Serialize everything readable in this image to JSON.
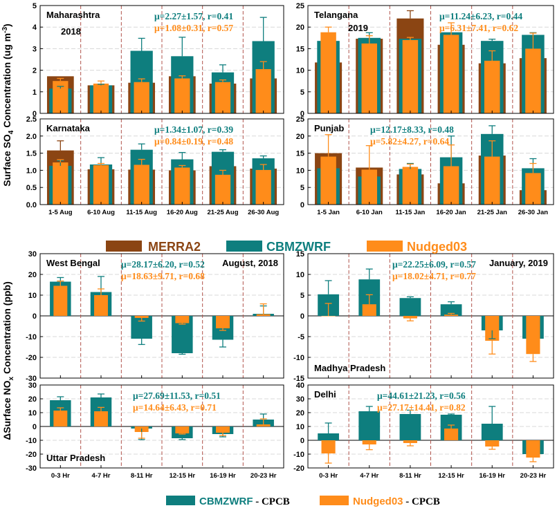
{
  "colors": {
    "merra2": "#8B4513",
    "cbmzwrf": "#0E7E7E",
    "nudged03": "#FF8C1A",
    "divider": "#B0524A",
    "grid": "#D8D8D8"
  },
  "top_ylabel": {
    "main": "Surface SO",
    "sub": "4",
    "rest": " Concentration (ug m",
    "sup": "-3",
    "end": ")"
  },
  "bottom_ylabel": {
    "main": "ΔSurface NO",
    "sub": "x",
    "rest": " Concentration (ppb)"
  },
  "legend_top": [
    {
      "series": "merra2",
      "label": "MERRA2"
    },
    {
      "series": "cbmzwrf",
      "label": "CBMZWRF"
    },
    {
      "series": "nudged03",
      "label": "Nudged03"
    }
  ],
  "legend_bottom": [
    {
      "series": "cbmzwrf",
      "label": "CBMZWRF",
      "suffix": " - CPCB"
    },
    {
      "series": "nudged03",
      "label": "Nudged03",
      "suffix": " - CPCB"
    }
  ],
  "chart_data": [
    {
      "id": "maharashtra",
      "type": "bar",
      "title": "Maharashtra",
      "subtitle": "2018",
      "stat_cbmz": "μ=2.27±1.57, r=0.41",
      "stat_nudged": "μ=1.08±0.31, r=0.57",
      "categories": [
        "1-5 Aug",
        "6-10 Aug",
        "11-15 Aug",
        "16-20 Aug",
        "21-25 Aug",
        "26-30 Aug"
      ],
      "show_xticks": false,
      "ylim": [
        0,
        5
      ],
      "yticks": [
        0,
        1,
        2,
        3,
        4,
        5
      ],
      "merra2": [
        1.72,
        1.3,
        1.42,
        1.72,
        1.38,
        1.62
      ],
      "cbmzwrf": [
        1.15,
        1.3,
        2.9,
        2.65,
        1.9,
        3.35
      ],
      "cbmzwrf_err": [
        0.1,
        0.05,
        0.58,
        0.88,
        0.35,
        1.1
      ],
      "nudged03": [
        1.5,
        1.38,
        1.45,
        1.62,
        1.45,
        2.05
      ],
      "nudged03_err": [
        0.12,
        0.12,
        0.15,
        0.12,
        0.1,
        0.35
      ]
    },
    {
      "id": "telangana",
      "type": "bar",
      "title": "Telangana",
      "subtitle": "2019",
      "stat_cbmz": "μ=11.24±6.23, r=0.44",
      "stat_nudged": "μ=6.31±7.41, r=0.62",
      "categories": [
        "1-5 Jan",
        "6-10 Jan",
        "11-15 Jan",
        "16-20 Jan",
        "21-25 Jan",
        "26-30 Jan"
      ],
      "show_xticks": false,
      "ylim": [
        0,
        25
      ],
      "yticks": [
        0,
        5,
        10,
        15,
        20,
        25
      ],
      "merra2": [
        11.8,
        17.3,
        22.0,
        15.9,
        11.6,
        12.8
      ],
      "merra2_err": [
        0,
        0,
        1.8,
        0,
        0,
        0
      ],
      "cbmzwrf": [
        16.8,
        17.5,
        17.3,
        18.8,
        16.8,
        18.2
      ],
      "cbmzwrf_err": [
        0,
        1.2,
        0,
        0,
        0.4,
        0.5
      ],
      "nudged03": [
        18.8,
        16.2,
        17.0,
        18.2,
        12.2,
        15.0
      ],
      "nudged03_err": [
        1.2,
        1.8,
        0.6,
        2.8,
        2.3,
        3.6
      ]
    },
    {
      "id": "karnataka",
      "type": "bar",
      "title": "Karnataka",
      "stat_cbmz": "μ=1.34±1.07, r=0.39",
      "stat_nudged": "μ=0.84±0.19, r=0.48",
      "categories": [
        "1-5 Aug",
        "6-10 Aug",
        "11-15 Aug",
        "16-20 Aug",
        "21-25 Aug",
        "26-30 Aug"
      ],
      "show_xticks": true,
      "ylim": [
        0,
        2.5
      ],
      "yticks": [
        0.0,
        0.5,
        1.0,
        1.5,
        2.0,
        2.5
      ],
      "merra2": [
        1.58,
        1.03,
        1.02,
        1.0,
        1.12,
        1.05
      ],
      "merra2_err": [
        0.28,
        0,
        0,
        0,
        0,
        0
      ],
      "cbmzwrf": [
        1.13,
        1.17,
        1.6,
        1.32,
        1.54,
        1.35
      ],
      "cbmzwrf_err": [
        0.15,
        0.2,
        0.17,
        0.2,
        0.06,
        0.07
      ],
      "nudged03": [
        1.23,
        1.15,
        1.16,
        1.08,
        0.87,
        1.01
      ],
      "nudged03_err": [
        0.08,
        0.05,
        0.16,
        0.06,
        0.13,
        0.16
      ]
    },
    {
      "id": "punjab",
      "type": "bar",
      "title": "Punjab",
      "stat_cbmz": "μ=12.17±8.33, r=0.48",
      "stat_nudged": "μ=5.82±4.27, r=0.64",
      "categories": [
        "1-5 Jan",
        "6-10 Jan",
        "11-15 Jan",
        "16-20 Jan",
        "21-25 Jan",
        "26-30 Jan"
      ],
      "show_xticks": true,
      "ylim": [
        0,
        25
      ],
      "yticks": [
        0,
        5,
        10,
        15,
        20,
        25
      ],
      "merra2": [
        15.0,
        10.8,
        8.8,
        6.2,
        14.3,
        4.2
      ],
      "cbmzwrf": [
        10.6,
        8.2,
        10.4,
        13.8,
        20.6,
        10.6
      ],
      "cbmzwrf_err": [
        0,
        0,
        1.6,
        6.2,
        2.4,
        2.8
      ],
      "nudged03": [
        14.0,
        10.2,
        11.0,
        11.2,
        14.0,
        9.2
      ],
      "nudged03_err": [
        6.4,
        7.0,
        0.8,
        6.2,
        4.6,
        2.8
      ]
    },
    {
      "id": "west-bengal",
      "type": "bar",
      "title": "West Bengal",
      "corner": "August, 2018",
      "stat_cbmz": "μ=28.17±6.20, r=0.52",
      "stat_nudged": "μ=18.63±9.71, r=0.68",
      "categories": [
        "0-3 Hr",
        "4-7 Hr",
        "8-11 Hr",
        "12-15 Hr",
        "16-19 Hr",
        "20-23 Hr"
      ],
      "show_xticks": false,
      "ylim": [
        -30,
        30
      ],
      "yticks": [
        -30,
        -20,
        -10,
        0,
        10,
        20,
        30
      ],
      "cbmzwrf": [
        16.5,
        11.5,
        -11.0,
        -18.0,
        -11.5,
        1.0
      ],
      "cbmzwrf_err": [
        2.0,
        7.5,
        2.8,
        0.5,
        3.5,
        3.8
      ],
      "nudged03": [
        14.5,
        10.0,
        -1.0,
        -3.5,
        -6.0,
        0.8
      ],
      "nudged03_err": [
        2.3,
        3.0,
        1.5,
        0.5,
        1.0,
        5.0
      ]
    },
    {
      "id": "madhya-pradesh",
      "type": "bar",
      "title": "Madhya Pradesh",
      "corner": "January, 2019",
      "title_position": "bottom-left",
      "stat_cbmz": "μ=22.25±6.09, r=0.57",
      "stat_nudged": "μ=18.02±4.71, r=0.77",
      "categories": [
        "0-3 Hr",
        "4-7 Hr",
        "8-11 Hr",
        "12-15 Hr",
        "16-19 Hr",
        "20-23 Hr"
      ],
      "show_xticks": false,
      "ylim": [
        -15,
        15
      ],
      "yticks": [
        -15,
        -10,
        -5,
        0,
        5,
        10,
        15
      ],
      "cbmzwrf": [
        5.2,
        8.8,
        4.3,
        2.8,
        -3.5,
        -5.5
      ],
      "cbmzwrf_err": [
        3.3,
        2.5,
        0.3,
        0.6,
        2.0,
        0
      ],
      "nudged03": [
        0,
        2.8,
        -0.6,
        0.3,
        -6.0,
        -9.2
      ],
      "nudged03_err": [
        3.0,
        2.3,
        0.6,
        0.3,
        3.2,
        1.8
      ]
    },
    {
      "id": "uttar-pradesh",
      "type": "bar",
      "title": "Uttar Pradesh",
      "title_position": "bottom-left",
      "stat_cbmz": "μ=27.69±11.53, r=0.51",
      "stat_nudged": "μ=14.64±6.43, r=0.71",
      "categories": [
        "0-3 Hr",
        "4-7 Hr",
        "8-11 Hr",
        "12-15 Hr",
        "16-19 Hr",
        "20-23 Hr"
      ],
      "show_xticks": true,
      "ylim": [
        -30,
        30
      ],
      "yticks": [
        -30,
        -20,
        -10,
        0,
        10,
        20,
        30
      ],
      "cbmzwrf": [
        19.0,
        21.0,
        -1.5,
        -8.5,
        -5.5,
        5.0
      ],
      "cbmzwrf_err": [
        2.5,
        2.5,
        8.0,
        1.0,
        2.0,
        4.0
      ],
      "nudged03": [
        11.5,
        11.0,
        -4.0,
        -5.0,
        -4.5,
        1.5
      ],
      "nudged03_err": [
        2.0,
        2.8,
        4.5,
        0.5,
        2.0,
        4.0
      ]
    },
    {
      "id": "delhi",
      "type": "bar",
      "title": "Delhi",
      "stat_cbmz": "μ=44.61±21.23, r=0.56",
      "stat_nudged": "μ=27.17±14.41, r=0.82",
      "categories": [
        "0-3 Hr",
        "4-7 Hr",
        "8-11 Hr",
        "12-15 Hr",
        "16-19 Hr",
        "20-23 Hr"
      ],
      "show_xticks": true,
      "ylim": [
        -20,
        40
      ],
      "yticks": [
        -20,
        -10,
        0,
        10,
        20,
        30,
        40
      ],
      "cbmzwrf": [
        5.0,
        21.0,
        19.0,
        18.5,
        12.0,
        -10.0
      ],
      "cbmzwrf_err": [
        7.5,
        3.5,
        2.8,
        0.5,
        12.5,
        0
      ],
      "nudged03": [
        -9.5,
        -3.0,
        -2.0,
        8.5,
        -4.5,
        -12.5
      ],
      "nudged03_err": [
        7.0,
        3.8,
        2.0,
        2.5,
        2.0,
        3.0
      ]
    }
  ]
}
